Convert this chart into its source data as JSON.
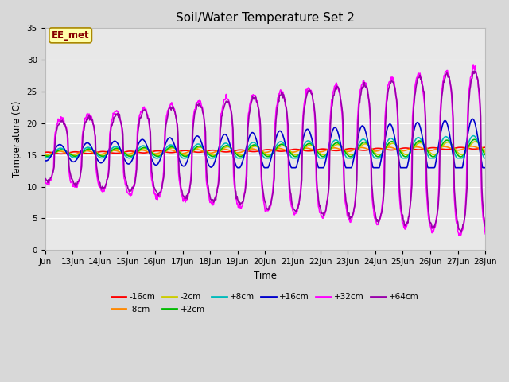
{
  "title": "Soil/Water Temperature Set 2",
  "xlabel": "Time",
  "ylabel": "Temperature (C)",
  "ylim": [
    0,
    35
  ],
  "yticks": [
    0,
    5,
    10,
    15,
    20,
    25,
    30,
    35
  ],
  "background_color": "#d8d8d8",
  "plot_bg_color": "#e8e8e8",
  "annotation_text": "EE_met",
  "annotation_bg": "#ffffaa",
  "annotation_border": "#aa8800",
  "annotation_text_color": "#880000",
  "series_order": [
    "-16cm",
    "-8cm",
    "-2cm",
    "+2cm",
    "+8cm",
    "+16cm",
    "+32cm",
    "+64cm"
  ],
  "series": {
    "-16cm": {
      "color": "#ff0000",
      "lw": 1.2
    },
    "-8cm": {
      "color": "#ff8800",
      "lw": 1.2
    },
    "-2cm": {
      "color": "#cccc00",
      "lw": 1.2
    },
    "+2cm": {
      "color": "#00bb00",
      "lw": 1.2
    },
    "+8cm": {
      "color": "#00bbbb",
      "lw": 1.2
    },
    "+16cm": {
      "color": "#0000cc",
      "lw": 1.2
    },
    "+32cm": {
      "color": "#ff00ff",
      "lw": 1.2
    },
    "+64cm": {
      "color": "#9900aa",
      "lw": 1.2
    }
  },
  "title_fontsize": 11,
  "tick_fontsize": 7.5,
  "label_fontsize": 8.5
}
